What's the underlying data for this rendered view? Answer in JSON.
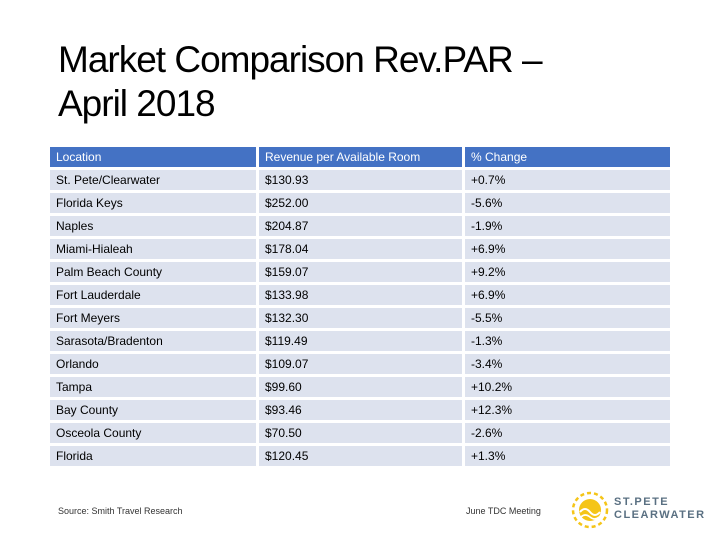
{
  "title": {
    "line1": "Market Comparison Rev.PAR –",
    "line2": "April 2018"
  },
  "table": {
    "headers": [
      "Location",
      "Revenue per Available Room",
      "% Change"
    ],
    "rows": [
      [
        "St. Pete/Clearwater",
        "$130.93",
        "+0.7%"
      ],
      [
        "Florida Keys",
        "$252.00",
        "-5.6%"
      ],
      [
        "Naples",
        "$204.87",
        "-1.9%"
      ],
      [
        "Miami-Hialeah",
        "$178.04",
        "+6.9%"
      ],
      [
        "Palm Beach County",
        "$159.07",
        "+9.2%"
      ],
      [
        "Fort Lauderdale",
        "$133.98",
        "+6.9%"
      ],
      [
        "Fort Meyers",
        "$132.30",
        "-5.5%"
      ],
      [
        "Sarasota/Bradenton",
        "$119.49",
        "-1.3%"
      ],
      [
        "Orlando",
        "$109.07",
        "-3.4%"
      ],
      [
        "Tampa",
        "$99.60",
        "+10.2%"
      ],
      [
        "Bay County",
        "$93.46",
        "+12.3%"
      ],
      [
        "Osceola County",
        "$70.50",
        "-2.6%"
      ],
      [
        "Florida",
        "$120.45",
        "+1.3%"
      ]
    ]
  },
  "footer": {
    "source": "Source: Smith Travel Research",
    "meeting": "June TDC Meeting",
    "logo_line1": "ST.PETE",
    "logo_line2": "CLEARWATER",
    "logo_icon": "sun-wave-icon"
  },
  "colors": {
    "header_bg": "#4472c4",
    "row_bg": "#dde2ee",
    "logo_yellow": "#f5c518",
    "logo_text": "#5a7082"
  }
}
